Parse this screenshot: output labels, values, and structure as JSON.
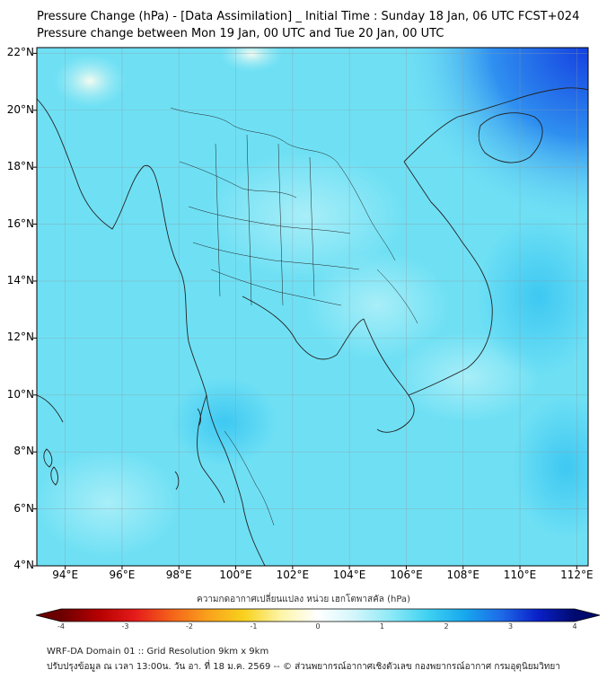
{
  "title": {
    "line1": "Pressure Change (hPa) - [Data Assimilation] _ Initial Time : Sunday 18 Jan, 06 UTC FCST+024",
    "line2": "Pressure change between Mon 19 Jan, 00 UTC and Tue 20 Jan, 00 UTC"
  },
  "map": {
    "lat_labels": [
      "22°N",
      "20°N",
      "18°N",
      "16°N",
      "14°N",
      "12°N",
      "10°N",
      "8°N",
      "6°N",
      "4°N"
    ],
    "lon_labels": [
      "94°E",
      "96°E",
      "98°E",
      "100°E",
      "102°E",
      "104°E",
      "106°E",
      "108°E",
      "110°E",
      "112°E"
    ],
    "lat_values": [
      22,
      20,
      18,
      16,
      14,
      12,
      10,
      8,
      6,
      4
    ],
    "lon_values": [
      94,
      96,
      98,
      100,
      102,
      104,
      106,
      108,
      110,
      112
    ],
    "extent": {
      "lon_min": 93,
      "lon_max": 112.4,
      "lat_min": 4,
      "lat_max": 22.2
    },
    "dominant_field_color": "#6fe0f4",
    "field_max_color": "#1a4fe6",
    "field_min_color": "#fffbe6",
    "gridlines": true
  },
  "colorbar": {
    "title": "ความกดอากาศเปลี่ยนแปลง หน่วย เฮกโตพาสคัล (hPa)",
    "ticks": [
      "-4",
      "-3",
      "-2",
      "-1",
      "0",
      "1",
      "2",
      "3",
      "4"
    ],
    "tick_values": [
      -4,
      -3,
      -2,
      -1,
      0,
      1,
      2,
      3,
      4
    ],
    "range": [
      -4,
      4
    ],
    "colors": [
      "#6b0000",
      "#b40000",
      "#e41a1a",
      "#f4621a",
      "#f9a11b",
      "#f8d21e",
      "#fdf5a8",
      "#ffffff",
      "#d2f6fb",
      "#8ce9f7",
      "#3fd1f1",
      "#17a8ee",
      "#1e6ae8",
      "#0a20c8",
      "#000a6e"
    ]
  },
  "footer": {
    "line1": "WRF-DA Domain 01 :: Grid Resolution 9km x 9km",
    "line2": "ปรับปรุงข้อมูล ณ เวลา 13:00น. วัน อา. ที่ 18 ม.ค. 2569 -- © ส่วนพยากรณ์อากาศเชิงตัวเลข กองพยากรณ์อากาศ กรมอุตุนิยมวิทยา"
  }
}
